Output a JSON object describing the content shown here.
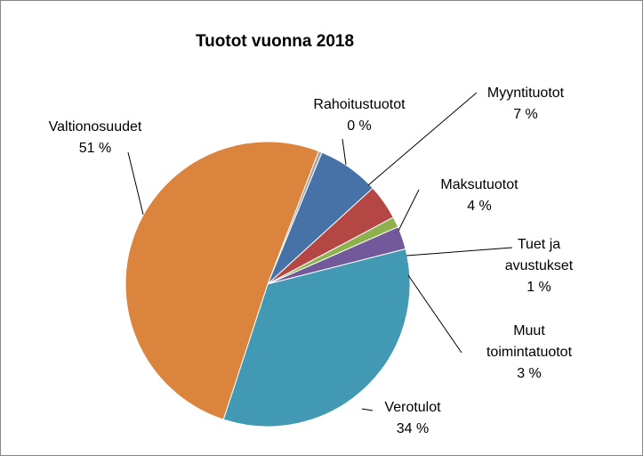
{
  "chart_data": {
    "type": "pie",
    "title": "Tuotot vuonna 2018",
    "categories": [
      "Rahoitustuotot",
      "Myyntituotot",
      "Maksutuotot",
      "Tuet ja avustukset",
      "Muut toimintatuotot",
      "Verotulot",
      "Valtionosuudet"
    ],
    "values": [
      0.4,
      7,
      4,
      1.2,
      2.6,
      34,
      50.8
    ],
    "value_labels": [
      "0 %",
      "7 %",
      "4 %",
      "1 %",
      "3 %",
      "34 %",
      "51 %"
    ],
    "label_lines": [
      [
        "Rahoitustuotot"
      ],
      [
        "Myyntituotot"
      ],
      [
        "Maksutuotot"
      ],
      [
        "Tuet ja",
        "avustukset"
      ],
      [
        "Muut",
        "toimintatuotot"
      ],
      [
        "Verotulot"
      ],
      [
        "Valtionosuudet"
      ]
    ],
    "colors": [
      "#A5A5A5",
      "#4672A8",
      "#B44744",
      "#8EB14E",
      "#71599A",
      "#4199B3",
      "#DA843E"
    ],
    "start_angle_deg": 21,
    "direction": "clockwise",
    "legend": "none"
  }
}
